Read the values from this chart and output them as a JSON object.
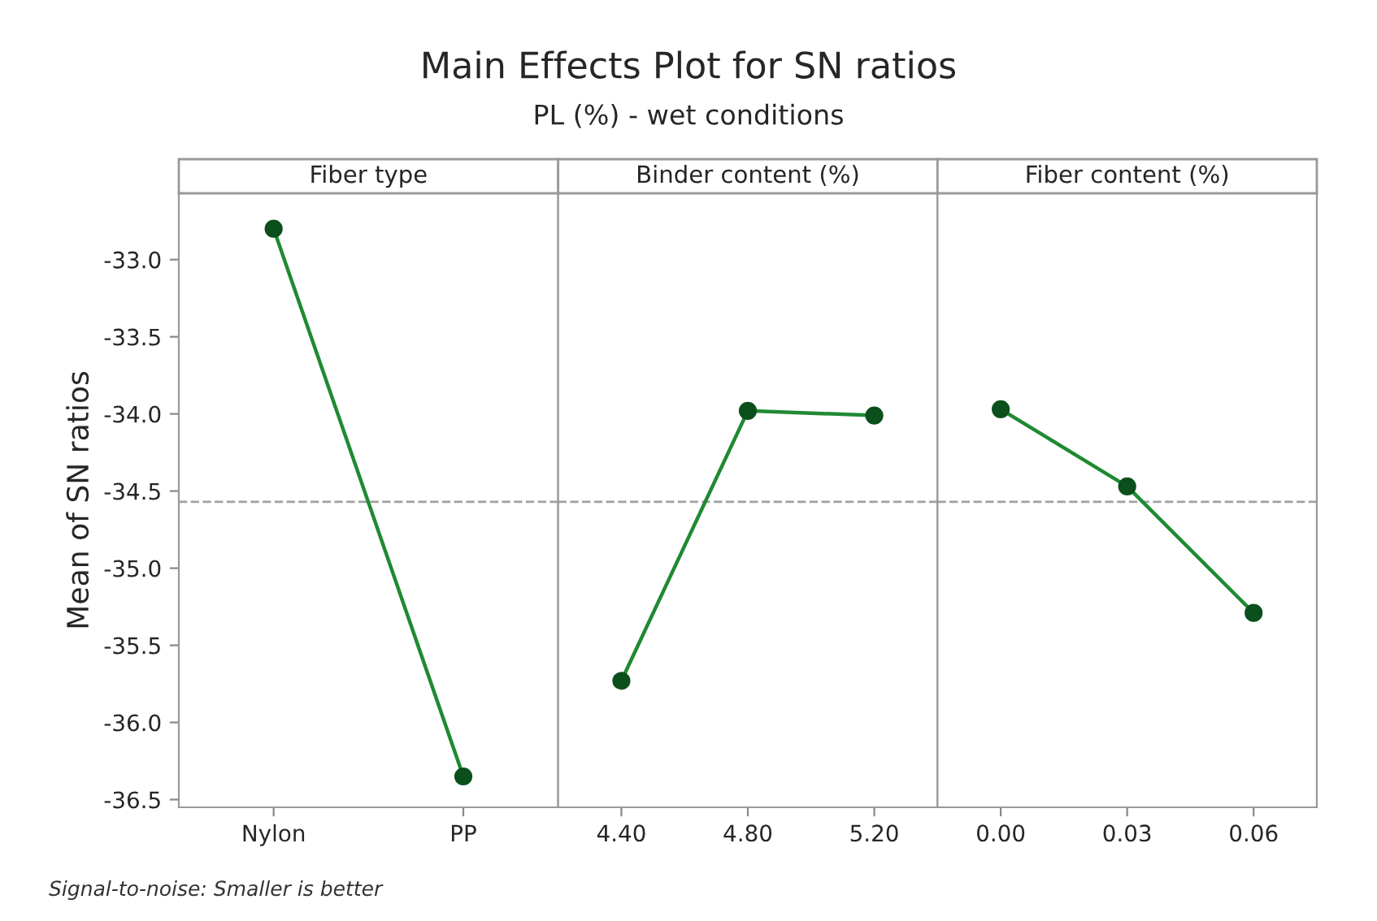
{
  "chart_data": [
    {
      "type": "other",
      "title": "Main Effects Plot for SN ratios",
      "subtitle": "PL (%) - wet conditions",
      "annotations": [
        "Signal-to-noise: Smaller is better"
      ]
    },
    {
      "type": "line",
      "title": "Fiber type",
      "ylabel": "Mean of SN ratios",
      "categories": [
        "Nylon",
        "PP"
      ],
      "series": [
        {
          "color": "#1f8a32",
          "values": [
            -32.8,
            -36.35
          ]
        }
      ],
      "marker": "circle",
      "ylim": [
        -36.55,
        -32.57
      ],
      "yticks": [
        {
          "value": -33,
          "label": "-33.0"
        },
        -33.5,
        {
          "value": -34,
          "label": "-34.0"
        },
        -34.5,
        {
          "value": -35,
          "label": "-35.0"
        },
        -35.5,
        {
          "value": -36,
          "label": "-36.0"
        },
        -36.5
      ],
      "ref_lines": [
        {
          "axis": "y",
          "value": -34.57,
          "color": "#a0a0a0",
          "line_style": "dashed"
        }
      ]
    },
    {
      "type": "line",
      "title": "Binder content (%)",
      "categories": [
        "4.40",
        "4.80",
        "5.20"
      ],
      "series": [
        {
          "color": "#1f8a32",
          "values": [
            -35.73,
            -33.98,
            -34.01
          ]
        }
      ],
      "marker": "circle",
      "ylim": [
        -36.55,
        -32.57
      ],
      "yticks": [
        -33.0,
        -33.5,
        -34.0,
        -34.5,
        -35.0,
        -35.5,
        -36.0,
        -36.5
      ],
      "tick_labels": "x",
      "ref_lines": [
        {
          "axis": "y",
          "value": -34.57,
          "color": "#a0a0a0",
          "line_style": "dashed"
        }
      ]
    },
    {
      "type": "line",
      "title": "Fiber content (%)",
      "categories": [
        "0.00",
        "0.03",
        "0.06"
      ],
      "series": [
        {
          "color": "#1f8a32",
          "values": [
            -33.97,
            -34.47,
            -35.29
          ]
        }
      ],
      "marker": "circle",
      "ylim": [
        -36.55,
        -32.57
      ],
      "yticks": [
        -33.0,
        -33.5,
        -34.0,
        -34.5,
        -35.0,
        -35.5,
        -36.0,
        -36.5
      ],
      "tick_labels": "x",
      "ref_lines": [
        {
          "axis": "y",
          "value": -34.57,
          "color": "#a0a0a0",
          "line_style": "dashed"
        }
      ]
    }
  ]
}
